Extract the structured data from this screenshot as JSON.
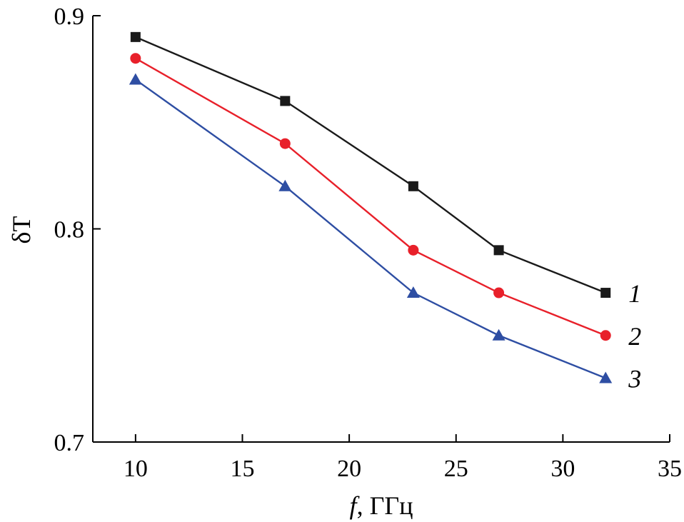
{
  "chart_data": {
    "type": "line",
    "title": "",
    "xlabel_var": "f",
    "xlabel_unit": ", ГГц",
    "ylabel": "δT",
    "xlim": [
      8,
      35
    ],
    "ylim": [
      0.7,
      0.9
    ],
    "xticks": [
      10,
      15,
      20,
      25,
      30,
      35
    ],
    "yticks": [
      0.7,
      0.8,
      0.9
    ],
    "xtick_labels": [
      "10",
      "15",
      "20",
      "25",
      "30",
      "35"
    ],
    "ytick_labels": [
      "0.7",
      "0.8",
      "0.9"
    ],
    "grid": false,
    "x": [
      10,
      17,
      23,
      27,
      32
    ],
    "series": [
      {
        "name": "1",
        "marker": "square",
        "color": "#1a1a1a",
        "values": [
          0.89,
          0.86,
          0.82,
          0.79,
          0.77
        ]
      },
      {
        "name": "2",
        "marker": "circle",
        "color": "#e8202a",
        "values": [
          0.88,
          0.84,
          0.79,
          0.77,
          0.75
        ]
      },
      {
        "name": "3",
        "marker": "triangle",
        "color": "#2e4ea3",
        "values": [
          0.87,
          0.82,
          0.77,
          0.75,
          0.73
        ]
      }
    ]
  }
}
